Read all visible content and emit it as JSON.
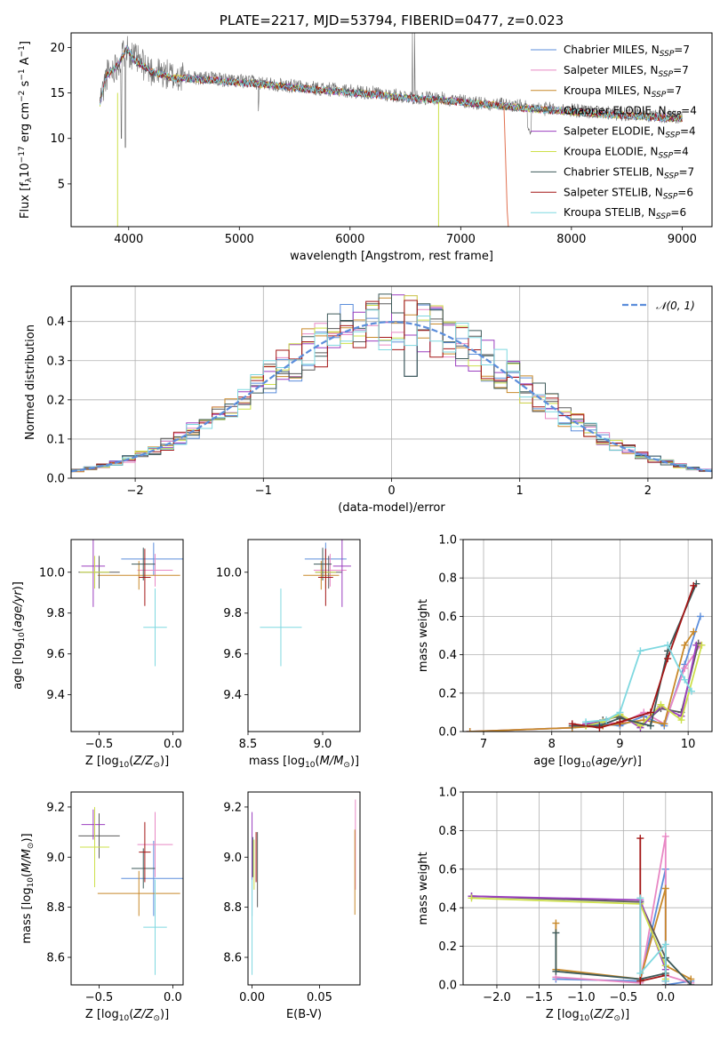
{
  "colors": {
    "Chabrier MILES": "#5b8ddb",
    "Salpeter MILES": "#e887c4",
    "Kroupa MILES": "#c8892a",
    "Chabrier ELODIE": "#5a5a5a",
    "Salpeter ELODIE": "#9b3fbf",
    "Kroupa ELODIE": "#cde04a",
    "Chabrier STELIB": "#3d5a5a",
    "Salpeter STELIB": "#a31515",
    "Kroupa STELIB": "#7fd8e0",
    "gauss": "#5b8ddb"
  },
  "chart_data": [
    {
      "id": "spectrum",
      "type": "line",
      "title": "PLATE=2217, MJD=53794, FIBERID=0477, z=0.023",
      "xlabel": "wavelength [Angstrom, rest frame]",
      "ylabel": "Flux [f_λ10^-17 erg cm^-2 s^-1 A^-1]",
      "xlim": [
        3480,
        9270
      ],
      "ylim": [
        0.3,
        21.6
      ],
      "xticks": [
        4000,
        5000,
        6000,
        7000,
        8000,
        9000
      ],
      "yticks": [
        5,
        10,
        15,
        20
      ],
      "legend_loc": "upper right",
      "legend": [
        {
          "name": "Chabrier MILES",
          "sub": "7"
        },
        {
          "name": "Salpeter MILES",
          "sub": "7"
        },
        {
          "name": "Kroupa MILES",
          "sub": "7"
        },
        {
          "name": "Chabrier ELODIE",
          "sub": "4"
        },
        {
          "name": "Salpeter ELODIE",
          "sub": "4"
        },
        {
          "name": "Kroupa ELODIE",
          "sub": "4"
        },
        {
          "name": "Chabrier STELIB",
          "sub": "7"
        },
        {
          "name": "Salpeter STELIB",
          "sub": "6"
        },
        {
          "name": "Kroupa STELIB",
          "sub": "6"
        }
      ],
      "continuum": {
        "x": [
          3740,
          3800,
          3900,
          3980,
          4050,
          4200,
          4400,
          4700,
          5000,
          5300,
          5600,
          5900,
          6200,
          6500,
          6800,
          7100,
          7400,
          7700,
          8000,
          8300,
          8600,
          9000
        ],
        "y": [
          14.0,
          17.0,
          18.2,
          20.0,
          18.8,
          17.5,
          16.8,
          16.6,
          16.3,
          16.0,
          15.6,
          15.3,
          15.0,
          14.6,
          14.4,
          14.0,
          13.7,
          13.3,
          13.1,
          12.8,
          12.6,
          12.3
        ]
      }
    },
    {
      "id": "residuals",
      "type": "histogram",
      "xlabel": "(data-model)/error",
      "ylabel": "Normed distribution",
      "xlim": [
        -2.5,
        2.5
      ],
      "ylim": [
        0,
        0.49
      ],
      "xticks": [
        -2,
        -1,
        0,
        1,
        2
      ],
      "xticklabels": [
        "−2",
        "−1",
        "0",
        "1",
        "2"
      ],
      "yticks": [
        0.0,
        0.1,
        0.2,
        0.3,
        0.4
      ],
      "legend": "𝒩(0, 1)",
      "bin_width": 0.1
    },
    {
      "id": "age_vs_Z",
      "type": "errorbar",
      "xlabel": "Z [log10(Z/Z☉)]",
      "ylabel": "age [log10(age/yr)]",
      "xlim": [
        -0.69,
        0.07
      ],
      "ylim": [
        9.22,
        10.16
      ],
      "xticks": [
        -0.5,
        0.0
      ],
      "xticklabels": [
        "−0.5",
        "0.0"
      ],
      "yticks": [
        9.4,
        9.6,
        9.8,
        10.0
      ],
      "points": [
        {
          "s": "Chabrier MILES",
          "x": -0.13,
          "xe": 0.22,
          "y": 10.065,
          "ye": 0.08
        },
        {
          "s": "Salpeter MILES",
          "x": -0.12,
          "xe": 0.12,
          "y": 10.01,
          "ye": 0.08
        },
        {
          "s": "Kroupa MILES",
          "x": -0.23,
          "xe": 0.28,
          "y": 9.985,
          "ye": 0.07
        },
        {
          "s": "Chabrier ELODIE",
          "x": -0.5,
          "xe": 0.14,
          "y": 10.0,
          "ye": 0.08
        },
        {
          "s": "Salpeter ELODIE",
          "x": -0.54,
          "xe": 0.08,
          "y": 10.03,
          "ye": 0.2
        },
        {
          "s": "Kroupa ELODIE",
          "x": -0.53,
          "xe": 0.1,
          "y": 10.0,
          "ye": 0.08
        },
        {
          "s": "Chabrier STELIB",
          "x": -0.2,
          "xe": 0.08,
          "y": 10.04,
          "ye": 0.08
        },
        {
          "s": "Salpeter STELIB",
          "x": -0.19,
          "xe": 0.04,
          "y": 9.975,
          "ye": 0.14
        },
        {
          "s": "Kroupa STELIB",
          "x": -0.12,
          "xe": 0.08,
          "y": 9.73,
          "ye": 0.19
        }
      ]
    },
    {
      "id": "age_vs_mass",
      "type": "errorbar",
      "xlabel": "mass [log10(M/M☉)]",
      "ylabel": "",
      "xlim": [
        8.5,
        9.25
      ],
      "ylim": [
        9.22,
        10.16
      ],
      "xticks": [
        8.5,
        9.0
      ],
      "xticklabels": [
        "8.5",
        "9.0"
      ],
      "yticks": [
        9.4,
        9.6,
        9.8,
        10.0
      ],
      "points": [
        {
          "s": "Chabrier MILES",
          "x": 9.02,
          "xe": 0.14,
          "y": 10.065,
          "ye": 0.08
        },
        {
          "s": "Salpeter MILES",
          "x": 9.05,
          "xe": 0.11,
          "y": 10.01,
          "ye": 0.08
        },
        {
          "s": "Kroupa MILES",
          "x": 8.99,
          "xe": 0.12,
          "y": 9.985,
          "ye": 0.07
        },
        {
          "s": "Chabrier ELODIE",
          "x": 9.04,
          "xe": 0.09,
          "y": 10.0,
          "ye": 0.08
        },
        {
          "s": "Salpeter ELODIE",
          "x": 9.13,
          "xe": 0.06,
          "y": 10.03,
          "ye": 0.2
        },
        {
          "s": "Kroupa ELODIE",
          "x": 9.02,
          "xe": 0.07,
          "y": 10.0,
          "ye": 0.08
        },
        {
          "s": "Chabrier STELIB",
          "x": 9.0,
          "xe": 0.06,
          "y": 10.04,
          "ye": 0.08
        },
        {
          "s": "Salpeter STELIB",
          "x": 9.02,
          "xe": 0.05,
          "y": 9.975,
          "ye": 0.14
        },
        {
          "s": "Kroupa STELIB",
          "x": 8.72,
          "xe": 0.14,
          "y": 9.73,
          "ye": 0.19
        }
      ]
    },
    {
      "id": "mass_weight_vs_age",
      "type": "line",
      "xlabel": "age [log10(age/yr)]",
      "ylabel": "mass weight",
      "xlim": [
        6.7,
        10.35
      ],
      "ylim": [
        0.0,
        1.0
      ],
      "xticks": [
        7,
        8,
        9,
        10
      ],
      "yticks": [
        0.0,
        0.2,
        0.4,
        0.6,
        0.8,
        1.0
      ],
      "series": [
        {
          "s": "Chabrier MILES",
          "x": [
            6.8,
            8.3,
            8.75,
            9.0,
            9.35,
            9.65,
            9.95,
            10.18
          ],
          "y": [
            0.0,
            0.02,
            0.04,
            0.03,
            0.08,
            0.03,
            0.35,
            0.6
          ]
        },
        {
          "s": "Salpeter MILES",
          "x": [
            6.8,
            8.3,
            8.75,
            9.0,
            9.35,
            9.65,
            9.95,
            10.18
          ],
          "y": [
            0.0,
            0.02,
            0.05,
            0.04,
            0.1,
            0.04,
            0.33,
            0.45
          ]
        },
        {
          "s": "Kroupa MILES",
          "x": [
            6.8,
            8.3,
            8.75,
            9.0,
            9.35,
            9.65,
            9.95,
            10.08
          ],
          "y": [
            0.0,
            0.02,
            0.03,
            0.04,
            0.06,
            0.04,
            0.45,
            0.52
          ]
        },
        {
          "s": "Chabrier ELODIE",
          "x": [
            8.5,
            8.75,
            9.0,
            9.3,
            9.6,
            9.9,
            10.15
          ],
          "y": [
            0.03,
            0.06,
            0.08,
            0.03,
            0.12,
            0.1,
            0.46
          ]
        },
        {
          "s": "Salpeter ELODIE",
          "x": [
            8.5,
            8.75,
            9.0,
            9.3,
            9.6,
            9.9,
            10.12
          ],
          "y": [
            0.04,
            0.05,
            0.09,
            0.02,
            0.13,
            0.08,
            0.45
          ]
        },
        {
          "s": "Kroupa ELODIE",
          "x": [
            8.5,
            8.75,
            9.0,
            9.3,
            9.6,
            9.9,
            10.2
          ],
          "y": [
            0.03,
            0.05,
            0.09,
            0.03,
            0.14,
            0.06,
            0.45
          ]
        },
        {
          "s": "Chabrier STELIB",
          "x": [
            8.3,
            8.7,
            9.0,
            9.45,
            9.7,
            10.12
          ],
          "y": [
            0.03,
            0.03,
            0.07,
            0.03,
            0.42,
            0.77
          ]
        },
        {
          "s": "Salpeter STELIB",
          "x": [
            8.3,
            8.7,
            9.0,
            9.45,
            9.7,
            10.08
          ],
          "y": [
            0.04,
            0.02,
            0.05,
            0.1,
            0.38,
            0.76
          ]
        },
        {
          "s": "Kroupa STELIB",
          "x": [
            8.5,
            8.8,
            9.0,
            9.3,
            9.7,
            9.95,
            10.05
          ],
          "y": [
            0.05,
            0.06,
            0.1,
            0.42,
            0.45,
            0.27,
            0.21
          ]
        }
      ]
    },
    {
      "id": "mass_vs_Z",
      "type": "errorbar",
      "xlabel": "Z [log10(Z/Z☉)]",
      "ylabel": "mass [log10(M/M☉)]",
      "xlim": [
        -0.69,
        0.07
      ],
      "ylim": [
        8.49,
        9.26
      ],
      "xticks": [
        -0.5,
        0.0
      ],
      "xticklabels": [
        "−0.5",
        "0.0"
      ],
      "yticks": [
        8.6,
        8.8,
        9.0,
        9.2
      ],
      "points": [
        {
          "s": "Chabrier MILES",
          "x": -0.13,
          "xe": 0.22,
          "y": 8.915,
          "ye": 0.15
        },
        {
          "s": "Salpeter MILES",
          "x": -0.12,
          "xe": 0.12,
          "y": 9.05,
          "ye": 0.13
        },
        {
          "s": "Kroupa MILES",
          "x": -0.23,
          "xe": 0.28,
          "y": 8.855,
          "ye": 0.09
        },
        {
          "s": "Chabrier ELODIE",
          "x": -0.5,
          "xe": 0.14,
          "y": 9.085,
          "ye": 0.09
        },
        {
          "s": "Salpeter ELODIE",
          "x": -0.54,
          "xe": 0.08,
          "y": 9.13,
          "ye": 0.06
        },
        {
          "s": "Kroupa ELODIE",
          "x": -0.53,
          "xe": 0.1,
          "y": 9.04,
          "ye": 0.16
        },
        {
          "s": "Chabrier STELIB",
          "x": -0.2,
          "xe": 0.08,
          "y": 8.955,
          "ye": 0.08
        },
        {
          "s": "Salpeter STELIB",
          "x": -0.19,
          "xe": 0.04,
          "y": 9.02,
          "ye": 0.12
        },
        {
          "s": "Kroupa STELIB",
          "x": -0.12,
          "xe": 0.08,
          "y": 8.72,
          "ye": 0.19
        }
      ]
    },
    {
      "id": "mass_vs_EBV",
      "type": "errorbar",
      "xlabel": "E(B-V)",
      "ylabel": "",
      "xlim": [
        -0.003,
        0.08
      ],
      "ylim": [
        8.49,
        9.26
      ],
      "xticks": [
        0.0,
        0.05
      ],
      "xticklabels": [
        "0.00",
        "0.05"
      ],
      "yticks": [
        8.6,
        8.8,
        9.0,
        9.2
      ],
      "points": [
        {
          "s": "Chabrier MILES",
          "x": 0.0,
          "xe": 0.0,
          "y": 8.915,
          "ye": 0.15
        },
        {
          "s": "Salpeter MILES",
          "x": 0.0766,
          "xe": 0.0,
          "y": 9.05,
          "ye": 0.18
        },
        {
          "s": "Kroupa MILES",
          "x": 0.0762,
          "xe": 0.0,
          "y": 8.94,
          "ye": 0.17
        },
        {
          "s": "Chabrier ELODIE",
          "x": 0.004,
          "xe": 0.0,
          "y": 8.95,
          "ye": 0.15
        },
        {
          "s": "Salpeter ELODIE",
          "x": 0.0,
          "xe": 0.0,
          "y": 9.05,
          "ye": 0.13
        },
        {
          "s": "Kroupa ELODIE",
          "x": 0.0015,
          "xe": 0.0,
          "y": 8.97,
          "ye": 0.1
        },
        {
          "s": "Chabrier STELIB",
          "x": 0.0005,
          "xe": 0.0,
          "y": 9.0,
          "ye": 0.08
        },
        {
          "s": "Salpeter STELIB",
          "x": 0.003,
          "xe": 0.0,
          "y": 9.0,
          "ye": 0.1
        },
        {
          "s": "Kroupa STELIB",
          "x": 0.0,
          "xe": 0.0,
          "y": 8.72,
          "ye": 0.19
        }
      ]
    },
    {
      "id": "mass_weight_vs_Z",
      "type": "line",
      "xlabel": "Z [log10(Z/Z☉)]",
      "ylabel": "mass weight",
      "xlim": [
        -2.4,
        0.55
      ],
      "ylim": [
        0.0,
        1.0
      ],
      "xticks": [
        -2.0,
        -1.5,
        -1.0,
        -0.5,
        0.0
      ],
      "xticklabels": [
        "−2.0",
        "−1.5",
        "−1.0",
        "−0.5",
        "0.0"
      ],
      "yticks": [
        0.0,
        0.2,
        0.4,
        0.6,
        0.8,
        1.0
      ],
      "series": [
        {
          "s": "Chabrier MILES",
          "x": [
            -1.3,
            -0.3,
            0.0,
            0.0,
            0.3
          ],
          "y": [
            0.03,
            0.02,
            0.6,
            0.0,
            0.02
          ]
        },
        {
          "s": "Salpeter MILES",
          "x": [
            -1.3,
            -0.3,
            0.0,
            0.0,
            0.3
          ],
          "y": [
            0.04,
            0.01,
            0.77,
            0.05,
            0.01
          ]
        },
        {
          "s": "Kroupa MILES",
          "x": [
            -1.3,
            -1.3,
            -0.3,
            0.0,
            0.0,
            0.3
          ],
          "y": [
            0.32,
            0.08,
            0.03,
            0.5,
            0.1,
            0.03
          ]
        },
        {
          "s": "Chabrier ELODIE",
          "x": [
            -2.3,
            -0.3,
            0.0,
            0.0
          ],
          "y": [
            0.46,
            0.43,
            0.14,
            0.02
          ]
        },
        {
          "s": "Salpeter ELODIE",
          "x": [
            -2.3,
            -0.3,
            0.0,
            0.0
          ],
          "y": [
            0.46,
            0.44,
            0.08,
            0.02
          ]
        },
        {
          "s": "Kroupa ELODIE",
          "x": [
            -2.3,
            -0.3,
            0.0,
            0.0
          ],
          "y": [
            0.45,
            0.42,
            0.1,
            0.03
          ]
        },
        {
          "s": "Chabrier STELIB",
          "x": [
            -1.3,
            -1.3,
            -0.3,
            0.0,
            0.0,
            0.3
          ],
          "y": [
            0.27,
            0.07,
            0.03,
            0.06,
            0.14,
            0.0
          ]
        },
        {
          "s": "Salpeter STELIB",
          "x": [
            -0.3,
            -0.3,
            0.0,
            0.0
          ],
          "y": [
            0.76,
            0.02,
            0.05,
            0.0
          ]
        },
        {
          "s": "Kroupa STELIB",
          "x": [
            -0.3,
            -0.3,
            0.0,
            0.0
          ],
          "y": [
            0.45,
            0.06,
            0.21,
            0.02
          ]
        }
      ]
    }
  ]
}
